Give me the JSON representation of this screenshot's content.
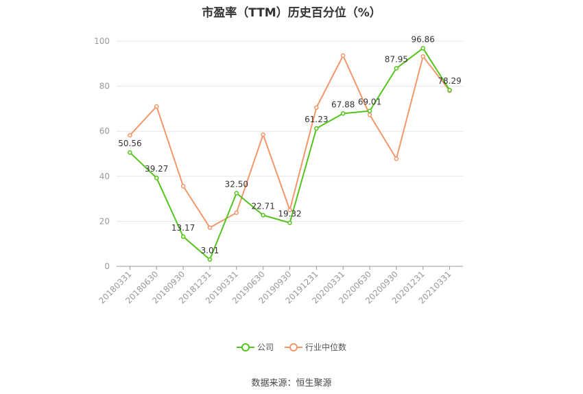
{
  "chart_data": {
    "type": "line",
    "title": "市盈率（TTM）历史百分位（%）",
    "xlabel": "",
    "ylabel": "",
    "categories": [
      "20180331",
      "20180630",
      "20180930",
      "20181231",
      "20190331",
      "20190630",
      "20190930",
      "20191231",
      "20200331",
      "20200630",
      "20200930",
      "20201231",
      "20210331"
    ],
    "ylim": [
      0,
      100
    ],
    "yticks": [
      0,
      20,
      40,
      60,
      80,
      100
    ],
    "grid": true,
    "legend_position": "bottom",
    "series": [
      {
        "name": "公司",
        "color": "#52c41a",
        "values": [
          50.56,
          39.27,
          13.17,
          3.01,
          32.5,
          22.71,
          19.32,
          61.23,
          67.88,
          69.01,
          87.95,
          96.86,
          78.29
        ],
        "labels": [
          "50.56",
          "39.27",
          "13.17",
          "3.01",
          "32.50",
          "22.71",
          "19.32",
          "61.23",
          "67.88",
          "69.01",
          "87.95",
          "96.86",
          "78.29"
        ]
      },
      {
        "name": "行业中位数",
        "color": "#f4956a",
        "values": [
          58.2,
          71.0,
          35.6,
          17.2,
          23.8,
          58.5,
          25.0,
          70.5,
          93.6,
          67.3,
          47.8,
          93.2,
          78.0
        ]
      }
    ]
  },
  "source": "数据来源：恒生聚源"
}
